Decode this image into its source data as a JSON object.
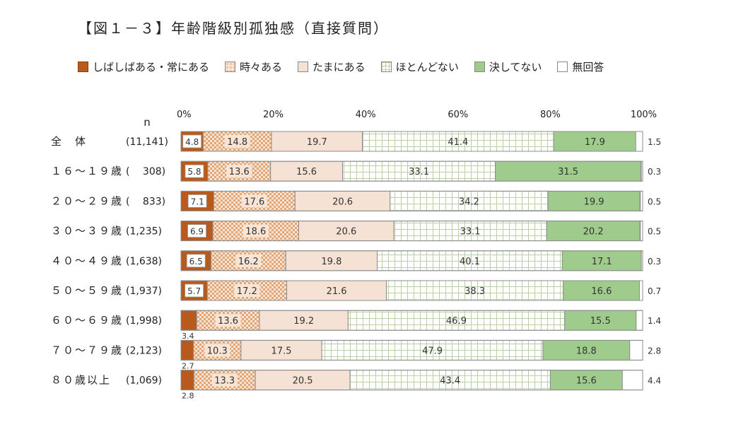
{
  "title": "【図１－３】年齢階級別孤独感（直接質問）",
  "legend": [
    {
      "label": "しばしばある・常にある",
      "key": "often"
    },
    {
      "label": "時々ある",
      "key": "sometimes"
    },
    {
      "label": "たまにある",
      "key": "occasional"
    },
    {
      "label": "ほとんどない",
      "key": "rarely"
    },
    {
      "label": "決してない",
      "key": "never"
    },
    {
      "label": "無回答",
      "key": "na"
    }
  ],
  "chart_data": {
    "type": "bar",
    "orientation": "horizontal",
    "stacked": true,
    "percent": true,
    "n_header": "n",
    "x_ticks": [
      "0%",
      "20%",
      "40%",
      "60%",
      "80%",
      "100%"
    ],
    "xlim": [
      0,
      100
    ],
    "categories": [
      "全　体",
      "１６～１９歳",
      "２０～２９歳",
      "３０～３９歳",
      "４０～４９歳",
      "５０～５９歳",
      "６０～６９歳",
      "７０～７９歳",
      "８０歳以上"
    ],
    "n_values": [
      "(11,141)",
      "(　 308)",
      "(　 833)",
      "(1,235)",
      "(1,638)",
      "(1,937)",
      "(1,998)",
      "(2,123)",
      "(1,069)"
    ],
    "series": [
      {
        "name": "しばしばある・常にある",
        "values": [
          4.8,
          5.8,
          7.1,
          6.9,
          6.5,
          5.7,
          3.4,
          2.7,
          2.8
        ]
      },
      {
        "name": "時々ある",
        "values": [
          14.8,
          13.6,
          17.6,
          18.6,
          16.2,
          17.2,
          13.6,
          10.3,
          13.3
        ]
      },
      {
        "name": "たまにある",
        "values": [
          19.7,
          15.6,
          20.6,
          20.6,
          19.8,
          21.6,
          19.2,
          17.5,
          20.5
        ]
      },
      {
        "name": "ほとんどない",
        "values": [
          41.4,
          33.1,
          34.2,
          33.1,
          40.1,
          38.3,
          46.9,
          47.9,
          43.4
        ]
      },
      {
        "name": "決してない",
        "values": [
          17.9,
          31.5,
          19.9,
          20.2,
          17.1,
          16.6,
          15.5,
          18.8,
          15.6
        ]
      },
      {
        "name": "無回答",
        "values": [
          1.5,
          0.3,
          0.5,
          0.5,
          0.3,
          0.7,
          1.4,
          2.8,
          4.4
        ]
      }
    ],
    "colors": {
      "often": "#b85a1c",
      "sometimes_bg": "#f8e4d4",
      "sometimes_dot": "#e2a574",
      "occasional": "#f6e2d4",
      "rarely_grid": "#b9cfa6",
      "never": "#9fcc8c",
      "na": "#ffffff",
      "border": "#8c8c8c"
    }
  }
}
